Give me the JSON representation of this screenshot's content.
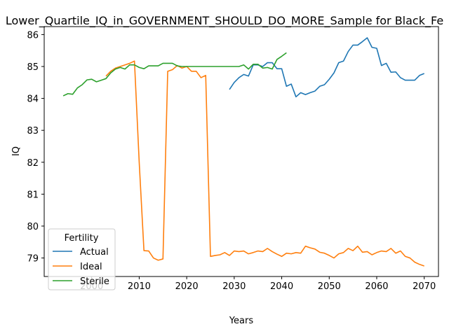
{
  "chart_data": {
    "type": "line",
    "title": "Lower_Quartile_IQ_in_GOVERNMENT_SHOULD_DO_MORE_Sample for Black_Fe",
    "xlabel": "Years",
    "ylabel": "IQ",
    "xlim": [
      1990,
      2073
    ],
    "ylim": [
      78.42,
      86.25
    ],
    "x_ticks": [
      2000,
      2010,
      2020,
      2030,
      2040,
      2050,
      2060,
      2070
    ],
    "y_ticks": [
      79,
      80,
      81,
      82,
      83,
      84,
      85,
      86
    ],
    "grid": false,
    "legend": {
      "title": "Fertility",
      "position": "lower-left"
    },
    "series": [
      {
        "name": "Actual",
        "color": "#1f77b4",
        "x": [
          2029,
          2030,
          2031,
          2032,
          2033,
          2034,
          2035,
          2036,
          2037,
          2038,
          2039,
          2040,
          2041,
          2042,
          2043,
          2044,
          2045,
          2046,
          2047,
          2048,
          2049,
          2050,
          2051,
          2052,
          2053,
          2054,
          2055,
          2056,
          2057,
          2058,
          2059,
          2060,
          2061,
          2062,
          2063,
          2064,
          2065,
          2066,
          2067,
          2068,
          2069,
          2070
        ],
        "y": [
          84.28,
          84.5,
          84.65,
          84.75,
          84.7,
          85.05,
          85.05,
          85.0,
          85.12,
          85.12,
          84.93,
          84.93,
          84.38,
          84.45,
          84.05,
          84.18,
          84.12,
          84.18,
          84.23,
          84.38,
          84.43,
          84.6,
          84.8,
          85.12,
          85.17,
          85.47,
          85.67,
          85.67,
          85.78,
          85.9,
          85.6,
          85.57,
          85.03,
          85.1,
          84.82,
          84.83,
          84.65,
          84.57,
          84.57,
          84.57,
          84.72,
          84.78
        ]
      },
      {
        "name": "Ideal",
        "color": "#ff7f0e",
        "x": [
          2003,
          2004,
          2005,
          2006,
          2007,
          2008,
          2009,
          2010,
          2011,
          2012,
          2013,
          2014,
          2015,
          2016,
          2017,
          2018,
          2019,
          2020,
          2021,
          2022,
          2023,
          2024,
          2025,
          2026,
          2027,
          2028,
          2029,
          2030,
          2031,
          2032,
          2033,
          2034,
          2035,
          2036,
          2037,
          2038,
          2039,
          2040,
          2041,
          2042,
          2043,
          2044,
          2045,
          2046,
          2047,
          2048,
          2049,
          2050,
          2051,
          2052,
          2053,
          2054,
          2055,
          2056,
          2057,
          2058,
          2059,
          2060,
          2061,
          2062,
          2063,
          2064,
          2065,
          2066,
          2067,
          2068,
          2069,
          2070
        ],
        "y": [
          84.7,
          84.85,
          84.95,
          85.0,
          85.05,
          85.1,
          85.17,
          82.0,
          79.23,
          79.22,
          79.0,
          78.93,
          78.97,
          84.85,
          84.9,
          85.03,
          84.95,
          85.0,
          84.85,
          84.85,
          84.65,
          84.72,
          79.05,
          79.08,
          79.1,
          79.17,
          79.08,
          79.22,
          79.2,
          79.22,
          79.13,
          79.17,
          79.22,
          79.2,
          79.3,
          79.2,
          79.12,
          79.05,
          79.15,
          79.13,
          79.17,
          79.15,
          79.37,
          79.32,
          79.28,
          79.18,
          79.15,
          79.08,
          79.0,
          79.13,
          79.17,
          79.3,
          79.23,
          79.37,
          79.18,
          79.2,
          79.1,
          79.17,
          79.22,
          79.2,
          79.3,
          79.15,
          79.22,
          79.05,
          79.0,
          78.87,
          78.8,
          78.75
        ]
      },
      {
        "name": "Sterile",
        "color": "#2ca02c",
        "x": [
          1994,
          1995,
          1996,
          1997,
          1998,
          1999,
          2000,
          2001,
          2002,
          2003,
          2004,
          2005,
          2006,
          2007,
          2008,
          2009,
          2010,
          2011,
          2012,
          2013,
          2014,
          2015,
          2016,
          2017,
          2018,
          2019,
          2020,
          2021,
          2022,
          2023,
          2024,
          2025,
          2026,
          2027,
          2028,
          2029,
          2030,
          2031,
          2032,
          2033,
          2034,
          2035,
          2036,
          2037,
          2038,
          2039,
          2040,
          2041
        ],
        "y": [
          84.08,
          84.15,
          84.13,
          84.33,
          84.43,
          84.58,
          84.6,
          84.52,
          84.57,
          84.62,
          84.8,
          84.92,
          84.97,
          84.92,
          85.05,
          85.05,
          84.97,
          84.93,
          85.02,
          85.02,
          85.02,
          85.1,
          85.1,
          85.1,
          85.02,
          85.0,
          85.0,
          85.0,
          85.0,
          85.0,
          85.0,
          85.0,
          85.0,
          85.0,
          85.0,
          85.0,
          85.0,
          85.0,
          85.05,
          84.92,
          85.07,
          85.07,
          84.95,
          84.97,
          84.92,
          85.22,
          85.32,
          85.43
        ]
      }
    ]
  }
}
